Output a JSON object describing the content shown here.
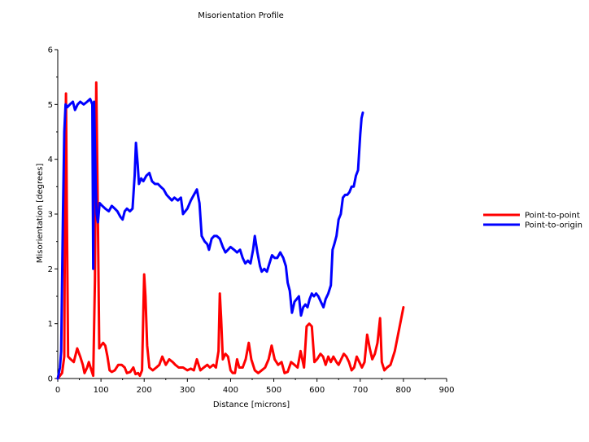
{
  "chart_data": {
    "type": "line",
    "title": "Misorientation Profile",
    "xlabel": "Distance [microns]",
    "ylabel": "Misorientation [degrees]",
    "xlim": [
      0,
      900
    ],
    "ylim": [
      0,
      6
    ],
    "xticks": [
      0,
      100,
      200,
      300,
      400,
      500,
      600,
      700,
      800,
      900
    ],
    "yticks": [
      0,
      1,
      2,
      3,
      4,
      5,
      6
    ],
    "grid": false,
    "legend_position": "right",
    "series": [
      {
        "name": "Point-to-point",
        "color": "#ff0000",
        "points": [
          [
            0,
            0.0
          ],
          [
            5,
            0.05
          ],
          [
            10,
            0.1
          ],
          [
            15,
            0.4
          ],
          [
            17,
            3.5
          ],
          [
            19,
            5.2
          ],
          [
            21,
            3.0
          ],
          [
            24,
            0.4
          ],
          [
            30,
            0.35
          ],
          [
            37,
            0.3
          ],
          [
            45,
            0.55
          ],
          [
            52,
            0.4
          ],
          [
            58,
            0.25
          ],
          [
            62,
            0.1
          ],
          [
            68,
            0.2
          ],
          [
            72,
            0.3
          ],
          [
            78,
            0.15
          ],
          [
            82,
            0.05
          ],
          [
            86,
            1.8
          ],
          [
            89,
            5.4
          ],
          [
            92,
            3.5
          ],
          [
            96,
            0.55
          ],
          [
            100,
            0.6
          ],
          [
            105,
            0.65
          ],
          [
            110,
            0.6
          ],
          [
            115,
            0.4
          ],
          [
            120,
            0.15
          ],
          [
            125,
            0.12
          ],
          [
            132,
            0.15
          ],
          [
            140,
            0.25
          ],
          [
            148,
            0.25
          ],
          [
            155,
            0.2
          ],
          [
            160,
            0.1
          ],
          [
            168,
            0.12
          ],
          [
            175,
            0.2
          ],
          [
            180,
            0.08
          ],
          [
            186,
            0.1
          ],
          [
            190,
            0.05
          ],
          [
            195,
            0.15
          ],
          [
            200,
            1.9
          ],
          [
            203,
            1.5
          ],
          [
            207,
            0.6
          ],
          [
            212,
            0.2
          ],
          [
            220,
            0.15
          ],
          [
            228,
            0.2
          ],
          [
            235,
            0.25
          ],
          [
            242,
            0.4
          ],
          [
            250,
            0.25
          ],
          [
            258,
            0.35
          ],
          [
            266,
            0.3
          ],
          [
            272,
            0.25
          ],
          [
            280,
            0.2
          ],
          [
            290,
            0.2
          ],
          [
            300,
            0.15
          ],
          [
            308,
            0.18
          ],
          [
            315,
            0.15
          ],
          [
            322,
            0.35
          ],
          [
            330,
            0.15
          ],
          [
            338,
            0.2
          ],
          [
            346,
            0.25
          ],
          [
            352,
            0.2
          ],
          [
            360,
            0.25
          ],
          [
            366,
            0.2
          ],
          [
            372,
            0.5
          ],
          [
            375,
            1.55
          ],
          [
            378,
            1.1
          ],
          [
            382,
            0.35
          ],
          [
            388,
            0.45
          ],
          [
            394,
            0.4
          ],
          [
            400,
            0.15
          ],
          [
            405,
            0.1
          ],
          [
            410,
            0.1
          ],
          [
            415,
            0.35
          ],
          [
            420,
            0.2
          ],
          [
            428,
            0.2
          ],
          [
            435,
            0.35
          ],
          [
            442,
            0.65
          ],
          [
            448,
            0.35
          ],
          [
            456,
            0.15
          ],
          [
            464,
            0.1
          ],
          [
            472,
            0.15
          ],
          [
            480,
            0.2
          ],
          [
            488,
            0.35
          ],
          [
            495,
            0.6
          ],
          [
            502,
            0.35
          ],
          [
            510,
            0.25
          ],
          [
            518,
            0.3
          ],
          [
            525,
            0.1
          ],
          [
            532,
            0.12
          ],
          [
            540,
            0.3
          ],
          [
            548,
            0.25
          ],
          [
            555,
            0.2
          ],
          [
            562,
            0.5
          ],
          [
            570,
            0.2
          ],
          [
            576,
            0.95
          ],
          [
            582,
            1.0
          ],
          [
            588,
            0.95
          ],
          [
            594,
            0.3
          ],
          [
            600,
            0.35
          ],
          [
            608,
            0.45
          ],
          [
            614,
            0.4
          ],
          [
            620,
            0.25
          ],
          [
            626,
            0.4
          ],
          [
            632,
            0.3
          ],
          [
            638,
            0.4
          ],
          [
            645,
            0.3
          ],
          [
            650,
            0.25
          ],
          [
            656,
            0.35
          ],
          [
            662,
            0.45
          ],
          [
            668,
            0.4
          ],
          [
            674,
            0.3
          ],
          [
            680,
            0.15
          ],
          [
            686,
            0.2
          ],
          [
            692,
            0.4
          ],
          [
            698,
            0.3
          ],
          [
            704,
            0.2
          ],
          [
            710,
            0.3
          ],
          [
            716,
            0.8
          ],
          [
            722,
            0.55
          ],
          [
            728,
            0.35
          ],
          [
            734,
            0.45
          ],
          [
            740,
            0.65
          ],
          [
            746,
            1.1
          ],
          [
            750,
            0.3
          ],
          [
            756,
            0.15
          ],
          [
            762,
            0.2
          ],
          [
            770,
            0.25
          ],
          [
            780,
            0.5
          ],
          [
            790,
            0.9
          ],
          [
            800,
            1.3
          ]
        ]
      },
      {
        "name": "Point-to-origin",
        "color": "#0000ff",
        "points": [
          [
            0,
            0.0
          ],
          [
            5,
            0.2
          ],
          [
            8,
            0.5
          ],
          [
            12,
            3.0
          ],
          [
            15,
            4.5
          ],
          [
            18,
            5.0
          ],
          [
            22,
            4.95
          ],
          [
            28,
            5.0
          ],
          [
            35,
            5.05
          ],
          [
            40,
            4.9
          ],
          [
            46,
            5.0
          ],
          [
            52,
            5.05
          ],
          [
            60,
            5.0
          ],
          [
            68,
            5.05
          ],
          [
            75,
            5.1
          ],
          [
            80,
            5.0
          ],
          [
            82,
            2.0
          ],
          [
            84,
            5.05
          ],
          [
            88,
            3.5
          ],
          [
            90,
            3.0
          ],
          [
            93,
            2.85
          ],
          [
            97,
            3.2
          ],
          [
            103,
            3.15
          ],
          [
            110,
            3.1
          ],
          [
            118,
            3.05
          ],
          [
            125,
            3.15
          ],
          [
            132,
            3.1
          ],
          [
            138,
            3.05
          ],
          [
            145,
            2.95
          ],
          [
            150,
            2.9
          ],
          [
            155,
            3.05
          ],
          [
            160,
            3.1
          ],
          [
            167,
            3.05
          ],
          [
            173,
            3.1
          ],
          [
            178,
            3.7
          ],
          [
            181,
            4.3
          ],
          [
            185,
            3.9
          ],
          [
            188,
            3.55
          ],
          [
            193,
            3.65
          ],
          [
            198,
            3.6
          ],
          [
            205,
            3.7
          ],
          [
            212,
            3.75
          ],
          [
            218,
            3.6
          ],
          [
            225,
            3.55
          ],
          [
            232,
            3.55
          ],
          [
            238,
            3.5
          ],
          [
            245,
            3.45
          ],
          [
            252,
            3.35
          ],
          [
            258,
            3.3
          ],
          [
            264,
            3.25
          ],
          [
            270,
            3.3
          ],
          [
            278,
            3.25
          ],
          [
            285,
            3.3
          ],
          [
            290,
            3.0
          ],
          [
            295,
            3.05
          ],
          [
            300,
            3.1
          ],
          [
            308,
            3.25
          ],
          [
            315,
            3.35
          ],
          [
            322,
            3.45
          ],
          [
            328,
            3.2
          ],
          [
            333,
            2.6
          ],
          [
            340,
            2.5
          ],
          [
            346,
            2.45
          ],
          [
            350,
            2.35
          ],
          [
            356,
            2.55
          ],
          [
            362,
            2.6
          ],
          [
            368,
            2.6
          ],
          [
            375,
            2.55
          ],
          [
            382,
            2.4
          ],
          [
            388,
            2.3
          ],
          [
            394,
            2.35
          ],
          [
            400,
            2.4
          ],
          [
            408,
            2.35
          ],
          [
            415,
            2.3
          ],
          [
            422,
            2.35
          ],
          [
            428,
            2.2
          ],
          [
            434,
            2.1
          ],
          [
            440,
            2.15
          ],
          [
            446,
            2.1
          ],
          [
            452,
            2.35
          ],
          [
            456,
            2.6
          ],
          [
            462,
            2.3
          ],
          [
            468,
            2.05
          ],
          [
            472,
            1.95
          ],
          [
            478,
            2.0
          ],
          [
            484,
            1.95
          ],
          [
            490,
            2.1
          ],
          [
            496,
            2.25
          ],
          [
            502,
            2.2
          ],
          [
            508,
            2.2
          ],
          [
            515,
            2.3
          ],
          [
            522,
            2.2
          ],
          [
            528,
            2.05
          ],
          [
            532,
            1.75
          ],
          [
            537,
            1.6
          ],
          [
            542,
            1.2
          ],
          [
            548,
            1.4
          ],
          [
            553,
            1.45
          ],
          [
            558,
            1.5
          ],
          [
            563,
            1.15
          ],
          [
            568,
            1.3
          ],
          [
            573,
            1.35
          ],
          [
            578,
            1.3
          ],
          [
            583,
            1.45
          ],
          [
            588,
            1.55
          ],
          [
            593,
            1.5
          ],
          [
            598,
            1.55
          ],
          [
            603,
            1.5
          ],
          [
            609,
            1.4
          ],
          [
            615,
            1.3
          ],
          [
            620,
            1.45
          ],
          [
            626,
            1.55
          ],
          [
            632,
            1.7
          ],
          [
            636,
            2.35
          ],
          [
            640,
            2.45
          ],
          [
            645,
            2.6
          ],
          [
            650,
            2.9
          ],
          [
            655,
            3.0
          ],
          [
            660,
            3.3
          ],
          [
            665,
            3.35
          ],
          [
            670,
            3.35
          ],
          [
            675,
            3.4
          ],
          [
            680,
            3.5
          ],
          [
            685,
            3.5
          ],
          [
            690,
            3.7
          ],
          [
            695,
            3.8
          ],
          [
            700,
            4.45
          ],
          [
            703,
            4.75
          ],
          [
            706,
            4.85
          ]
        ]
      }
    ]
  }
}
